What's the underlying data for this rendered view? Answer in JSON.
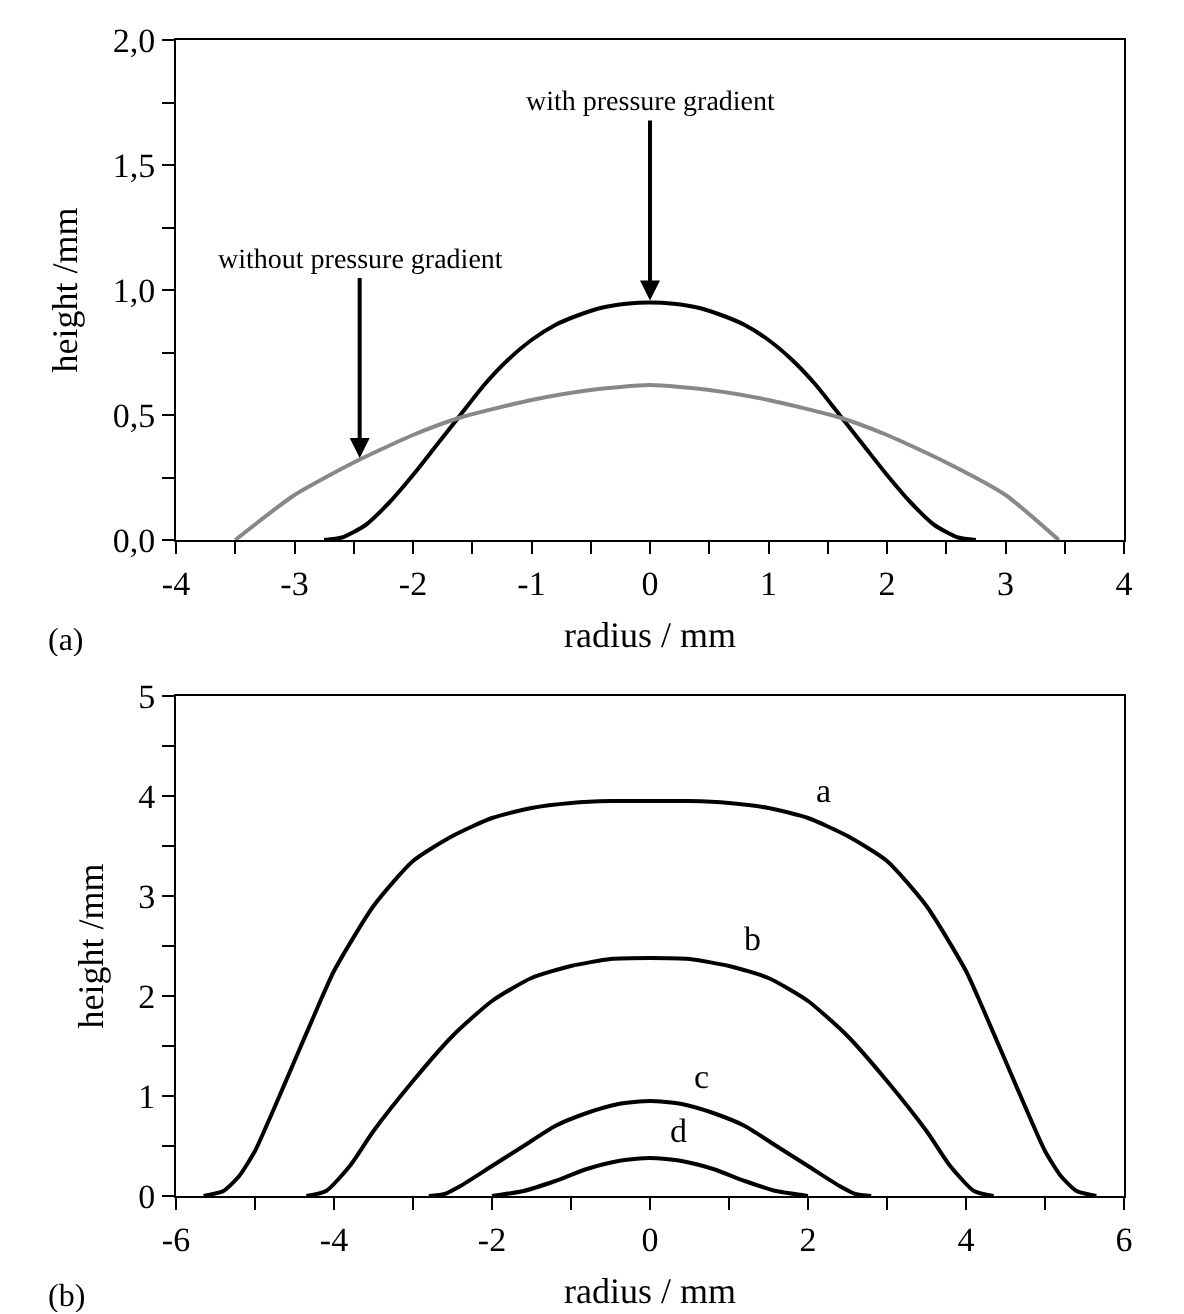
{
  "chart_data": [
    {
      "type": "line",
      "xlabel": "radius / mm",
      "ylabel": "height /mm",
      "xlim": [
        -4,
        4
      ],
      "ylim": [
        0,
        2
      ],
      "xticks": [
        -4,
        {
          "value": -3.5,
          "label": null
        },
        -3,
        {
          "value": -2.5,
          "label": null
        },
        -2,
        {
          "value": -1.5,
          "label": null
        },
        -1,
        {
          "value": -0.5,
          "label": null
        },
        0,
        {
          "value": 0.5,
          "label": null
        },
        1,
        {
          "value": 1.5,
          "label": null
        },
        2,
        {
          "value": 2.5,
          "label": null
        },
        3,
        {
          "value": 3.5,
          "label": null
        },
        4
      ],
      "yticks": [
        {
          "value": 0,
          "label": "0,0"
        },
        {
          "value": 0.25,
          "label": null
        },
        {
          "value": 0.5,
          "label": "0,5"
        },
        {
          "value": 0.75,
          "label": null
        },
        {
          "value": 1,
          "label": "1,0"
        },
        {
          "value": 1.25,
          "label": null
        },
        {
          "value": 1.5,
          "label": "1,5"
        },
        {
          "value": 1.75,
          "label": null
        },
        {
          "value": 2,
          "label": "2,0"
        }
      ],
      "grid": false,
      "marker": "none",
      "line_style": "solid",
      "series": [
        {
          "color": "#000000",
          "x": [
            -2.75,
            -2.6,
            -2.4,
            -2.2,
            -2,
            -1.8,
            -1.6,
            -1.4,
            -1.2,
            -1,
            -0.8,
            -0.6,
            -0.4,
            -0.2,
            0,
            0.2,
            0.4,
            0.6,
            0.8,
            1,
            1.2,
            1.4,
            1.6,
            1.8,
            2,
            2.2,
            2.4,
            2.6,
            2.75
          ],
          "values": [
            0,
            0.01,
            0.06,
            0.15,
            0.26,
            0.38,
            0.5,
            0.62,
            0.72,
            0.8,
            0.86,
            0.9,
            0.93,
            0.945,
            0.95,
            0.945,
            0.93,
            0.9,
            0.86,
            0.8,
            0.72,
            0.62,
            0.5,
            0.38,
            0.26,
            0.15,
            0.06,
            0.01,
            0
          ]
        },
        {
          "color": "#888888",
          "x": [
            -3.5,
            -3,
            -2.5,
            -2,
            -1.6,
            -1,
            -0.5,
            0,
            0.5,
            1,
            1.6,
            2,
            2.5,
            3,
            3.45
          ],
          "values": [
            0,
            0.18,
            0.31,
            0.42,
            0.49,
            0.56,
            0.6,
            0.62,
            0.6,
            0.56,
            0.49,
            0.42,
            0.31,
            0.18,
            0
          ]
        }
      ],
      "annotations": [
        {
          "text": "with pressure gradient",
          "x": 0,
          "y": 0.95
        },
        {
          "text": "without pressure gradient",
          "x": -2.45,
          "y": 0.32
        },
        "(a)"
      ]
    },
    {
      "type": "line",
      "xlabel": "radius / mm",
      "ylabel": "height /mm",
      "xlim": [
        -6,
        6
      ],
      "ylim": [
        0,
        5
      ],
      "xticks": [
        -6,
        {
          "value": -5,
          "label": null
        },
        -4,
        {
          "value": -3,
          "label": null
        },
        -2,
        {
          "value": -1,
          "label": null
        },
        0,
        {
          "value": 1,
          "label": null
        },
        2,
        {
          "value": 3,
          "label": null
        },
        4,
        {
          "value": 5,
          "label": null
        },
        6
      ],
      "yticks": [
        0,
        {
          "value": 0.5,
          "label": null
        },
        1,
        {
          "value": 1.5,
          "label": null
        },
        2,
        {
          "value": 2.5,
          "label": null
        },
        3,
        {
          "value": 3.5,
          "label": null
        },
        4,
        {
          "value": 4.5,
          "label": null
        },
        5
      ],
      "grid": false,
      "marker": "none",
      "line_style": "solid",
      "series": [
        {
          "color": "#000000",
          "x": [
            -5.65,
            -5.4,
            -5.2,
            -5,
            -4.8,
            -4.5,
            -4.2,
            -4,
            -3.5,
            -3,
            -2.5,
            -2,
            -1.5,
            -1,
            -0.5,
            0,
            0.5,
            1,
            1.5,
            2,
            2.5,
            3,
            3.5,
            4,
            4.2,
            4.5,
            4.8,
            5,
            5.2,
            5.4,
            5.65
          ],
          "values": [
            0,
            0.05,
            0.2,
            0.45,
            0.8,
            1.35,
            1.9,
            2.25,
            2.9,
            3.35,
            3.6,
            3.78,
            3.88,
            3.93,
            3.95,
            3.95,
            3.95,
            3.93,
            3.88,
            3.78,
            3.6,
            3.35,
            2.9,
            2.25,
            1.9,
            1.35,
            0.8,
            0.45,
            0.2,
            0.05,
            0
          ]
        },
        {
          "color": "#000000",
          "x": [
            -4.35,
            -4.1,
            -3.8,
            -3.5,
            -3,
            -2.5,
            -2,
            -1.5,
            -1,
            -0.5,
            0,
            0.5,
            1,
            1.5,
            2,
            2.5,
            3,
            3.5,
            3.8,
            4.1,
            4.35
          ],
          "values": [
            0,
            0.05,
            0.3,
            0.65,
            1.15,
            1.6,
            1.95,
            2.18,
            2.3,
            2.37,
            2.38,
            2.37,
            2.3,
            2.18,
            1.95,
            1.6,
            1.15,
            0.65,
            0.3,
            0.05,
            0
          ]
        },
        {
          "color": "#000000",
          "x": [
            -2.8,
            -2.6,
            -2.4,
            -2,
            -1.6,
            -1.2,
            -0.8,
            -0.4,
            0,
            0.4,
            0.8,
            1.2,
            1.6,
            2,
            2.4,
            2.6,
            2.8
          ],
          "values": [
            0,
            0.02,
            0.1,
            0.3,
            0.5,
            0.7,
            0.83,
            0.92,
            0.95,
            0.92,
            0.83,
            0.7,
            0.5,
            0.3,
            0.1,
            0.02,
            0
          ]
        },
        {
          "color": "#000000",
          "x": [
            -2,
            -1.6,
            -1.2,
            -0.8,
            -0.4,
            0,
            0.4,
            0.8,
            1.2,
            1.6,
            2
          ],
          "values": [
            0,
            0.05,
            0.15,
            0.27,
            0.35,
            0.38,
            0.35,
            0.27,
            0.15,
            0.05,
            0
          ]
        }
      ],
      "annotations": [
        {
          "text": "a",
          "x": 2,
          "y": 3.78
        },
        {
          "text": "b",
          "x": 1.1,
          "y": 2.3
        },
        {
          "text": "c",
          "x": 0.45,
          "y": 0.92
        },
        {
          "text": "d",
          "x": 0.15,
          "y": 0.38
        },
        "(b)"
      ]
    }
  ]
}
